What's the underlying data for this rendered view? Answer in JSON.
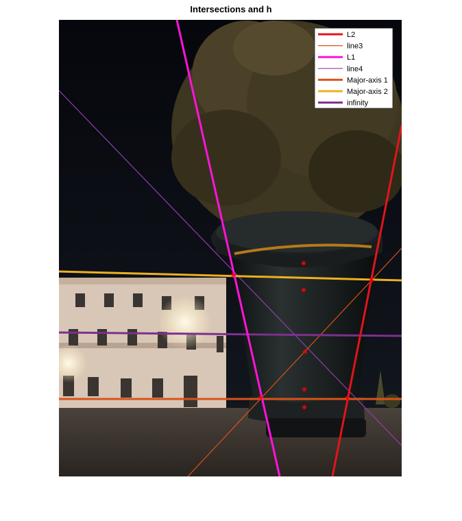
{
  "figure": {
    "title": "Intersections and h"
  },
  "legend": {
    "placement": "top-right",
    "entries": [
      {
        "label": "L2",
        "color": "#e3141b",
        "width": "thick"
      },
      {
        "label": "line3",
        "color": "#d95319",
        "width": "thin"
      },
      {
        "label": "L1",
        "color": "#ff14d9",
        "width": "thick"
      },
      {
        "label": "line4",
        "color": "#8e3fb0",
        "width": "thin"
      },
      {
        "label": "Major-axis 1",
        "color": "#d95319",
        "width": "thick"
      },
      {
        "label": "Major-axis 2",
        "color": "#edb120",
        "width": "thick"
      },
      {
        "label": "infinity",
        "color": "#7e2f8e",
        "width": "thick"
      }
    ]
  },
  "markers": {
    "symbol": "*",
    "color": "#ff0000",
    "count": 6
  },
  "scene": {
    "sky_color": "#0a0c12",
    "pot_color": "#15181a",
    "ground_color": "#3a3430",
    "building_color": "#d8c6b6"
  }
}
